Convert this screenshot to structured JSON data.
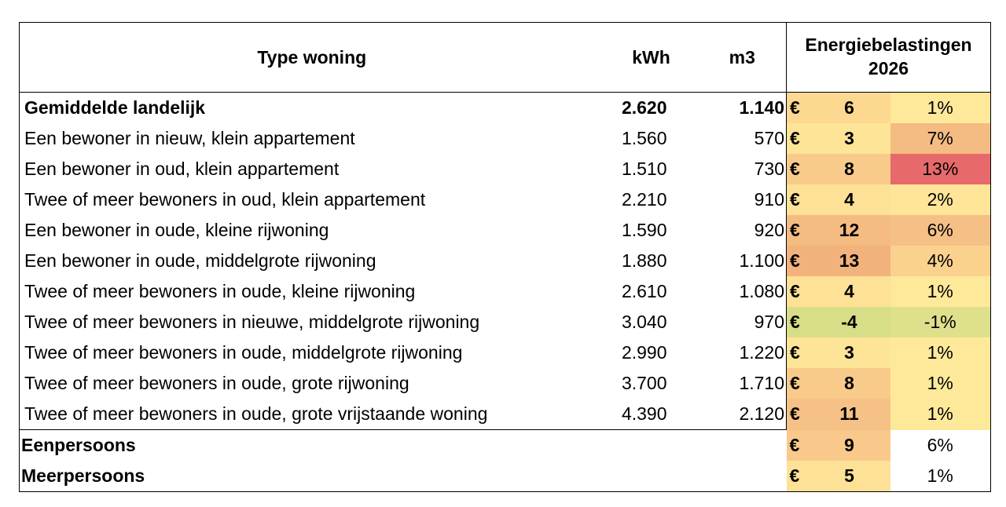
{
  "header": {
    "type": "Type woning",
    "kwh": "kWh",
    "m3": "m3",
    "energy_line1": "Energiebelastingen",
    "energy_line2": "2026"
  },
  "colors": {
    "yellow": "#fee99a",
    "light_orange": "#fbd08e",
    "orange": "#f7c185",
    "salmon": "#f2b27c",
    "red": "#e8696b",
    "green_yellow": "#e4e28e",
    "green": "#d8de88"
  },
  "rows": [
    {
      "type": "Gemiddelde landelijk",
      "kwh": "2.620",
      "m3": "1.140",
      "eur": "€",
      "val": "6",
      "pct": "1%",
      "val_color": "#fcd891",
      "pct_color": "#fee99a",
      "eur_color": "#fcd891",
      "bold": true
    },
    {
      "type": "Een bewoner in nieuw, klein appartement",
      "kwh": "1.560",
      "m3": "570",
      "eur": "€",
      "val": "3",
      "pct": "7%",
      "val_color": "#fee497",
      "pct_color": "#f4bc82",
      "eur_color": "#fee497",
      "bold": false
    },
    {
      "type": "Een bewoner in oud, klein appartement",
      "kwh": "1.510",
      "m3": "730",
      "eur": "€",
      "val": "8",
      "pct": "13%",
      "val_color": "#f9cb8b",
      "pct_color": "#e8696b",
      "eur_color": "#f9cb8b",
      "bold": false
    },
    {
      "type": "Twee of meer bewoners in oud, klein appartement",
      "kwh": "2.210",
      "m3": "910",
      "eur": "€",
      "val": "4",
      "pct": "2%",
      "val_color": "#fde196",
      "pct_color": "#fee598",
      "eur_color": "#fde196",
      "bold": false
    },
    {
      "type": "Een bewoner in oude, kleine rijwoning",
      "kwh": "1.590",
      "m3": "920",
      "eur": "€",
      "val": "12",
      "pct": "6%",
      "val_color": "#f5bc82",
      "pct_color": "#f5c085",
      "eur_color": "#f5bc82",
      "bold": false
    },
    {
      "type": "Een bewoner in oude, middelgrote rijwoning",
      "kwh": "1.880",
      "m3": "1.100",
      "eur": "€",
      "val": "13",
      "pct": "4%",
      "val_color": "#f2b27c",
      "pct_color": "#fad28e",
      "eur_color": "#f2b27c",
      "bold": false
    },
    {
      "type": "Twee of meer bewoners in oude, kleine rijwoning",
      "kwh": "2.610",
      "m3": "1.080",
      "eur": "€",
      "val": "4",
      "pct": "1%",
      "val_color": "#fde196",
      "pct_color": "#fee99a",
      "eur_color": "#fde196",
      "bold": false
    },
    {
      "type": "Twee of meer bewoners in nieuwe, middelgrote rijwoning",
      "kwh": "3.040",
      "m3": "970",
      "eur": "€",
      "val": "-4",
      "pct": "-1%",
      "val_color": "#d8de88",
      "pct_color": "#dfe08b",
      "eur_color": "#d8de88",
      "bold": false
    },
    {
      "type": "Twee of meer bewoners in oude, middelgrote rijwoning",
      "kwh": "2.990",
      "m3": "1.220",
      "eur": "€",
      "val": "3",
      "pct": "1%",
      "val_color": "#fee497",
      "pct_color": "#fee99a",
      "eur_color": "#fee497",
      "bold": false
    },
    {
      "type": "Twee of meer bewoners in oude, grote rijwoning",
      "kwh": "3.700",
      "m3": "1.710",
      "eur": "€",
      "val": "8",
      "pct": "1%",
      "val_color": "#f9cb8b",
      "pct_color": "#fee99a",
      "eur_color": "#f9cb8b",
      "bold": false
    },
    {
      "type": "Twee of meer bewoners in oude, grote vrijstaande woning",
      "kwh": "4.390",
      "m3": "2.120",
      "eur": "€",
      "val": "11",
      "pct": "1%",
      "val_color": "#f6c186",
      "pct_color": "#fee99a",
      "eur_color": "#f6c186",
      "bold": false
    }
  ],
  "summary": [
    {
      "type": "Eenpersoons",
      "eur": "€",
      "val": "9",
      "pct": "6%",
      "val_color": "#f8c98a",
      "eur_color": "#f8c98a"
    },
    {
      "type": "Meerpersoons",
      "eur": "€",
      "val": "5",
      "pct": "1%",
      "val_color": "#fde196",
      "eur_color": "#fde196"
    }
  ]
}
